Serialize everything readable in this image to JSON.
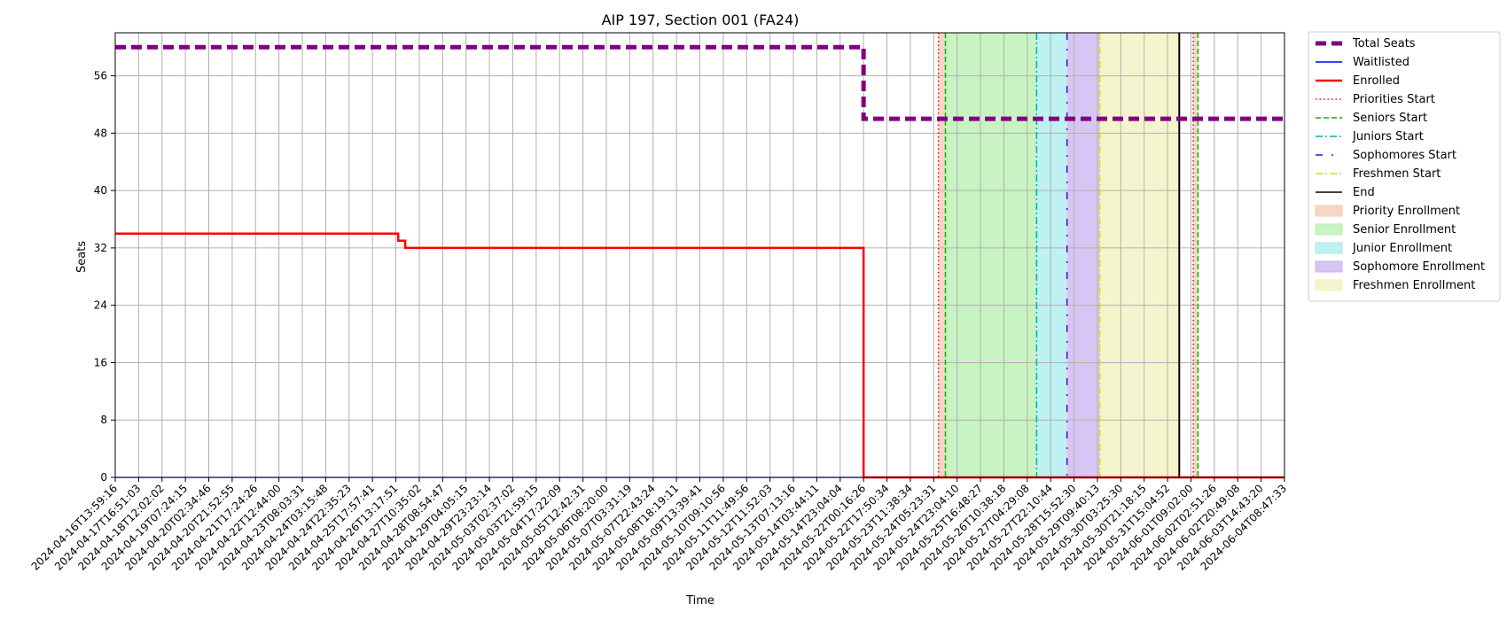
{
  "chart_data": {
    "type": "line",
    "title": "AIP 197, Section 001 (FA24)",
    "xlabel": "Time",
    "ylabel": "Seats",
    "ylim": [
      0,
      62
    ],
    "grid": true,
    "legend_placement": "outside-top-right",
    "x_tick_labels": [
      "2024-04-16T13:59:16",
      "2024-04-17T16:51:03",
      "2024-04-18T12:02:02",
      "2024-04-19T07:24:15",
      "2024-04-20T02:34:46",
      "2024-04-20T21:52:55",
      "2024-04-21T17:24:26",
      "2024-04-22T12:44:00",
      "2024-04-23T08:03:31",
      "2024-04-24T03:15:48",
      "2024-04-24T22:35:23",
      "2024-04-25T17:57:41",
      "2024-04-26T13:17:51",
      "2024-04-27T10:35:02",
      "2024-04-28T08:54:47",
      "2024-04-29T04:05:15",
      "2024-04-29T23:23:14",
      "2024-05-03T02:37:02",
      "2024-05-03T21:59:15",
      "2024-05-04T17:22:09",
      "2024-05-05T12:42:31",
      "2024-05-06T08:20:00",
      "2024-05-07T03:31:19",
      "2024-05-07T22:43:24",
      "2024-05-08T18:19:11",
      "2024-05-09T13:39:41",
      "2024-05-10T09:10:56",
      "2024-05-11T11:49:56",
      "2024-05-12T11:52:03",
      "2024-05-13T07:13:16",
      "2024-05-14T03:44:11",
      "2024-05-14T23:04:04",
      "2024-05-22T00:16:26",
      "2024-05-22T17:50:34",
      "2024-05-23T11:38:34",
      "2024-05-24T05:23:31",
      "2024-05-24T23:04:10",
      "2024-05-25T16:48:27",
      "2024-05-26T10:38:18",
      "2024-05-27T04:29:08",
      "2024-05-27T22:10:44",
      "2024-05-28T15:52:30",
      "2024-05-29T09:40:13",
      "2024-05-30T03:25:30",
      "2024-05-30T21:18:15",
      "2024-05-31T15:04:52",
      "2024-06-01T09:02:00",
      "2024-06-02T02:51:26",
      "2024-06-02T20:49:08",
      "2024-06-03T14:43:20",
      "2024-06-04T08:47:33"
    ],
    "y_ticks": [
      0,
      8,
      16,
      24,
      32,
      40,
      48,
      56
    ],
    "series": [
      {
        "name": "Total Seats",
        "color": "#800080",
        "style": "dashed-thick",
        "points": [
          [
            0,
            60
          ],
          [
            32,
            60
          ],
          [
            32,
            50
          ],
          [
            50,
            50
          ]
        ]
      },
      {
        "name": "Waitlisted",
        "color": "#0000ff",
        "style": "solid",
        "points": [
          [
            0,
            0
          ],
          [
            50,
            0
          ]
        ]
      },
      {
        "name": "Enrolled",
        "color": "#ff0000",
        "style": "solid",
        "points": [
          [
            0,
            34
          ],
          [
            12.1,
            34
          ],
          [
            12.1,
            33
          ],
          [
            12.4,
            33
          ],
          [
            12.4,
            32
          ],
          [
            32,
            32
          ],
          [
            32,
            0
          ],
          [
            50,
            0
          ]
        ]
      }
    ],
    "markers": [
      {
        "name": "Priorities Start",
        "x": 35.2,
        "color": "#ff0000",
        "style": "dotted"
      },
      {
        "name": "Seniors Start",
        "x": 35.5,
        "color": "#00bb00",
        "style": "dashed"
      },
      {
        "name": "Juniors Start",
        "x": 39.4,
        "color": "#00b0b0",
        "style": "dashdot"
      },
      {
        "name": "Sophomores Start",
        "x": 40.7,
        "color": "#5500dd",
        "style": "loose-dashdot"
      },
      {
        "name": "Freshmen Start",
        "x": 42.1,
        "color": "#dddd00",
        "style": "dashdot"
      },
      {
        "name": "End",
        "x": 45.5,
        "color": "#000000",
        "style": "solid"
      },
      {
        "name": "Priorities Start",
        "x": 46.1,
        "color": "#ff0000",
        "style": "dotted"
      },
      {
        "name": "Seniors Start",
        "x": 46.3,
        "color": "#00bb00",
        "style": "dashed"
      }
    ],
    "regions": [
      {
        "name": "Priority Enrollment",
        "x0": 35.2,
        "x1": 35.5,
        "color": "#f4c8b4"
      },
      {
        "name": "Senior Enrollment",
        "x0": 35.5,
        "x1": 39.4,
        "color": "#b6efae"
      },
      {
        "name": "Junior Enrollment",
        "x0": 39.4,
        "x1": 40.7,
        "color": "#a8ecec"
      },
      {
        "name": "Sophomore Enrollment",
        "x0": 40.7,
        "x1": 42.1,
        "color": "#c9b3ef"
      },
      {
        "name": "Freshmen Enrollment",
        "x0": 42.1,
        "x1": 45.5,
        "color": "#f2f2bc"
      },
      {
        "name": "Priority Enrollment",
        "x0": 46.1,
        "x1": 46.3,
        "color": "#f4c8b4"
      }
    ],
    "legend": [
      {
        "label": "Total Seats",
        "kind": "line",
        "color": "#800080",
        "style": "dashed-thick"
      },
      {
        "label": "Waitlisted",
        "kind": "line",
        "color": "#0000ff",
        "style": "solid"
      },
      {
        "label": "Enrolled",
        "kind": "line",
        "color": "#ff0000",
        "style": "solid-thick"
      },
      {
        "label": "Priorities Start",
        "kind": "line",
        "color": "#ff0000",
        "style": "dotted"
      },
      {
        "label": "Seniors Start",
        "kind": "line",
        "color": "#00bb00",
        "style": "dashed"
      },
      {
        "label": "Juniors Start",
        "kind": "line",
        "color": "#00b0b0",
        "style": "dashdot"
      },
      {
        "label": "Sophomores Start",
        "kind": "line",
        "color": "#5500dd",
        "style": "loose-dashdot"
      },
      {
        "label": "Freshmen Start",
        "kind": "line",
        "color": "#dddd00",
        "style": "dashdot"
      },
      {
        "label": "End",
        "kind": "line",
        "color": "#000000",
        "style": "solid"
      },
      {
        "label": "Priority Enrollment",
        "kind": "patch",
        "color": "#f4c8b4"
      },
      {
        "label": "Senior Enrollment",
        "kind": "patch",
        "color": "#b6efae"
      },
      {
        "label": "Junior Enrollment",
        "kind": "patch",
        "color": "#a8ecec"
      },
      {
        "label": "Sophomore Enrollment",
        "kind": "patch",
        "color": "#c9b3ef"
      },
      {
        "label": "Freshmen Enrollment",
        "kind": "patch",
        "color": "#f2f2bc"
      }
    ]
  }
}
